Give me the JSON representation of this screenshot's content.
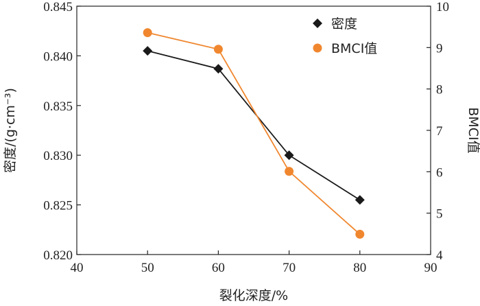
{
  "chart_data": {
    "type": "line",
    "xlabel": "裂化深度/%",
    "ylabel_left": "密度/(g·cm⁻³)",
    "ylabel_right": "BMCI值",
    "xlim": [
      40,
      90
    ],
    "xticks": [
      "40",
      "50",
      "60",
      "70",
      "80",
      "90"
    ],
    "ylim_left": [
      0.82,
      0.845
    ],
    "yticks_left": [
      "0.820",
      "0.825",
      "0.830",
      "0.835",
      "0.840",
      "0.845"
    ],
    "ylim_right": [
      4,
      10
    ],
    "yticks_right": [
      "4",
      "5",
      "6",
      "7",
      "8",
      "9",
      "10"
    ],
    "grid": false,
    "legend_position": "top-right",
    "series": [
      {
        "name": "密度",
        "axis": "left",
        "marker": "diamond",
        "color": "#1a1a1a",
        "x": [
          50,
          60,
          70,
          80
        ],
        "y": [
          0.8405,
          0.8387,
          0.83,
          0.8255
        ]
      },
      {
        "name": "BMCI值",
        "axis": "right",
        "marker": "circle",
        "color": "#f0872f",
        "x": [
          50,
          60,
          70,
          80
        ],
        "y": [
          9.36,
          8.96,
          6.01,
          4.49
        ]
      }
    ]
  }
}
